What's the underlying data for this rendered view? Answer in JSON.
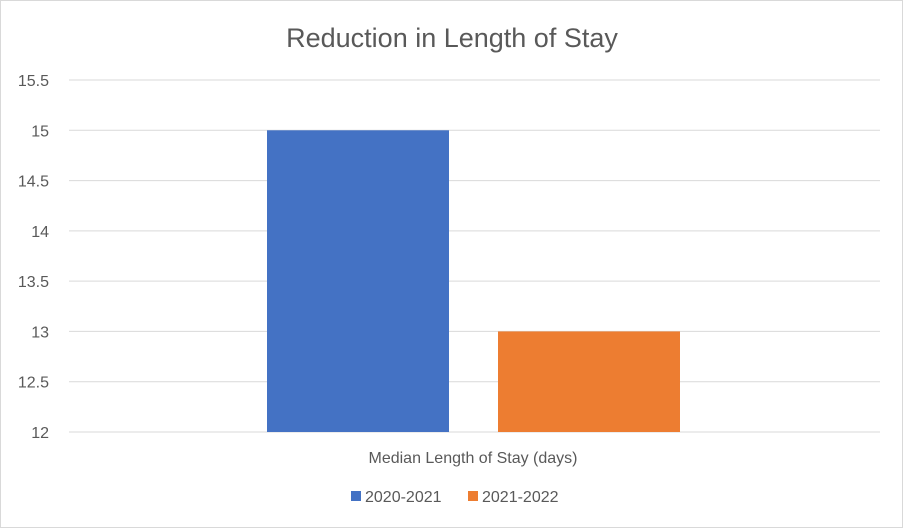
{
  "chart_data": {
    "type": "bar",
    "title": "Reduction in Length of Stay",
    "categories": [
      "Median Length of Stay (days)"
    ],
    "series": [
      {
        "name": "2020-2021",
        "values": [
          15
        ],
        "color": "#4472c4"
      },
      {
        "name": "2021-2022",
        "values": [
          13
        ],
        "color": "#ed7d31"
      }
    ],
    "ylim": [
      12,
      15.5
    ],
    "ytick_labels": [
      "12",
      "12.5",
      "13",
      "13.5",
      "14",
      "14.5",
      "15",
      "15.5"
    ],
    "grid": true,
    "gridline_color": "#d9d9d9",
    "legend_position": "bottom",
    "xlabel": "",
    "ylabel": ""
  }
}
